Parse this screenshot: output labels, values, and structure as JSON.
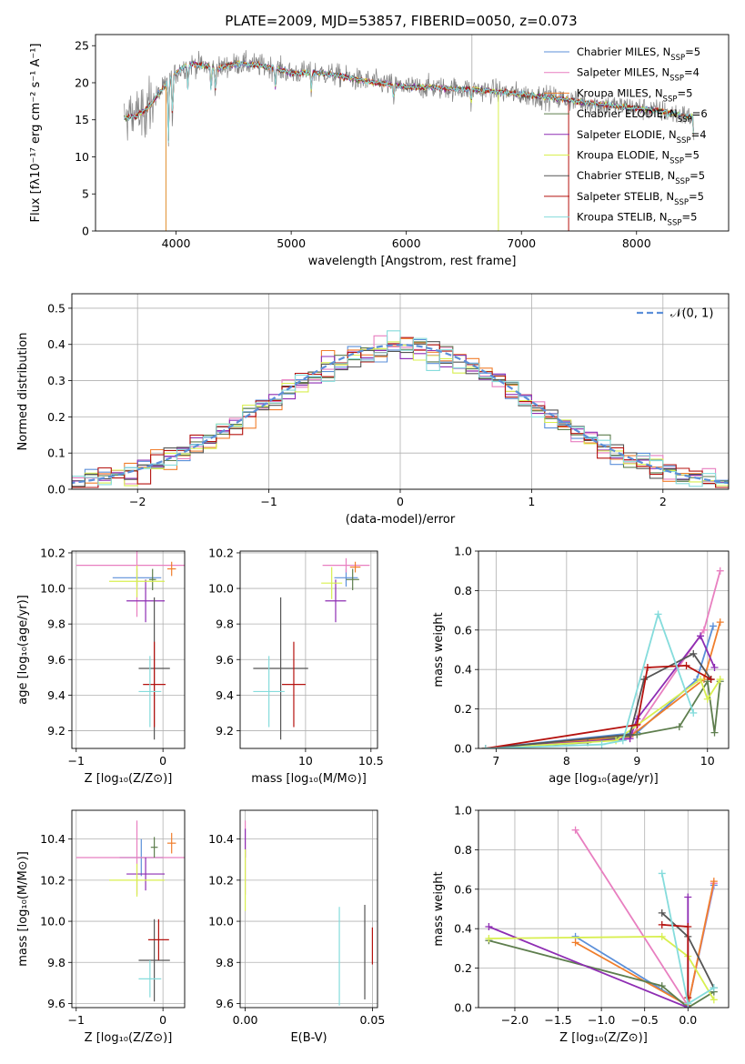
{
  "figure": {
    "title": "PLATE=2009, MJD=53857, FIBERID=0050, z=0.073"
  },
  "model_colors": {
    "Chabrier MILES": "#5b8fd9",
    "Salpeter MILES": "#e87fc0",
    "Kroupa MILES": "#f07e2c",
    "Chabrier ELODIE": "#5e7e4e",
    "Salpeter ELODIE": "#8e2db3",
    "Kroupa ELODIE": "#d8ef4f",
    "Chabrier STELIB": "#555555",
    "Salpeter STELIB": "#b5120f",
    "Kroupa STELIB": "#85dcdc"
  },
  "chart_data": [
    {
      "id": "spectrum",
      "type": "line",
      "title": "PLATE=2009, MJD=53857, FIBERID=0050, z=0.073",
      "xlabel": "wavelength [Angstrom, rest frame]",
      "ylabel": "Flux [fλ10⁻¹⁷ erg cm⁻² s⁻¹ A⁻¹]",
      "xlim": [
        3300,
        8800
      ],
      "ylim": [
        0,
        26.5
      ],
      "xticks": [
        4000,
        5000,
        6000,
        7000,
        8000
      ],
      "yticks": [
        0,
        5,
        10,
        15,
        20,
        25
      ],
      "legend_placement": "top-right",
      "legend": [
        "Chabrier MILES, N_SSP=5",
        "Salpeter MILES, N_SSP=4",
        "Kroupa MILES, N_SSP=5",
        "Chabrier ELODIE, N_SSP=6",
        "Salpeter ELODIE, N_SSP=4",
        "Kroupa ELODIE, N_SSP=5",
        "Chabrier STELIB, N_SSP=5",
        "Salpeter STELIB, N_SSP=5",
        "Kroupa STELIB, N_SSP=5"
      ],
      "continuum": {
        "x": [
          3550,
          3650,
          3750,
          3850,
          3950,
          4050,
          4150,
          4250,
          4350,
          4450,
          4550,
          4700,
          4850,
          5000,
          5200,
          5400,
          5600,
          5800,
          6000,
          6200,
          6400,
          6600,
          6800,
          7000,
          7200,
          7400,
          7600,
          7800,
          8000,
          8200,
          8400,
          8500
        ],
        "y": [
          15.2,
          15.5,
          16.5,
          18.5,
          20.5,
          22.0,
          22.5,
          22.3,
          21.8,
          22.3,
          22.6,
          22.4,
          22.0,
          21.3,
          21.4,
          21.0,
          20.3,
          19.9,
          19.4,
          19.4,
          19.2,
          19.1,
          18.8,
          18.4,
          18.1,
          17.7,
          17.2,
          16.9,
          16.6,
          16.2,
          15.6,
          15.3
        ]
      },
      "grid": false
    },
    {
      "id": "residuals",
      "type": "bar",
      "xlabel": "(data-model)/error",
      "ylabel": "Normed distribution",
      "xlim": [
        -2.5,
        2.5
      ],
      "ylim": [
        0,
        0.54
      ],
      "xticks": [
        -2,
        -1,
        0,
        1,
        2
      ],
      "yticks": [
        0.0,
        0.1,
        0.2,
        0.3,
        0.4,
        0.5
      ],
      "bin_width": 0.1,
      "legend": [
        "𝒩(0, 1)"
      ],
      "legend_placement": "top-right",
      "reference_curve": "N(0,1)",
      "grid": true
    },
    {
      "id": "age-vs-Z",
      "type": "scatter",
      "xlabel": "Z [log₁₀(Z/Z⊙)]",
      "ylabel": "age  [log₁₀(age/yr)]",
      "xlim": [
        -1.05,
        0.25
      ],
      "ylim": [
        9.1,
        10.21
      ],
      "xticks": [
        -1,
        0
      ],
      "yticks": [
        9.2,
        9.4,
        9.6,
        9.8,
        10.0,
        10.2
      ],
      "grid": true,
      "points": [
        {
          "model": "Chabrier MILES",
          "x": -0.3,
          "xerr": 0.28,
          "y": 10.06,
          "yerr": 0.05
        },
        {
          "model": "Salpeter MILES",
          "x": -0.3,
          "xerr": 0.7,
          "y": 10.13,
          "yerr": 0.29
        },
        {
          "model": "Kroupa MILES",
          "x": 0.1,
          "xerr": 0.05,
          "y": 10.11,
          "yerr": 0.04
        },
        {
          "model": "Chabrier ELODIE",
          "x": -0.12,
          "xerr": 0.04,
          "y": 10.05,
          "yerr": 0.06
        },
        {
          "model": "Salpeter ELODIE",
          "x": -0.2,
          "xerr": 0.22,
          "y": 9.93,
          "yerr": 0.12
        },
        {
          "model": "Kroupa ELODIE",
          "x": -0.3,
          "xerr": 0.32,
          "y": 10.04,
          "yerr": 0.09
        },
        {
          "model": "Chabrier STELIB",
          "x": -0.1,
          "xerr": 0.18,
          "y": 9.55,
          "yerr": 0.4
        },
        {
          "model": "Salpeter STELIB",
          "x": -0.1,
          "xerr": 0.13,
          "y": 9.46,
          "yerr": 0.24
        },
        {
          "model": "Kroupa STELIB",
          "x": -0.15,
          "xerr": 0.13,
          "y": 9.42,
          "yerr": 0.2
        }
      ]
    },
    {
      "id": "age-vs-mass",
      "type": "scatter",
      "xlabel": "mass [log₁₀(M/M⊙)]",
      "ylabel": "",
      "xlim": [
        9.5,
        10.55
      ],
      "ylim": [
        9.1,
        10.21
      ],
      "xticks": [
        10.0,
        10.5
      ],
      "xticklabels": [
        "10",
        "10.5"
      ],
      "yticks": [
        9.2,
        9.4,
        9.6,
        9.8,
        10.0,
        10.2
      ],
      "grid": true,
      "points": [
        {
          "model": "Chabrier MILES",
          "x": 10.31,
          "xerr": 0.09,
          "y": 10.06,
          "yerr": 0.05
        },
        {
          "model": "Salpeter MILES",
          "x": 10.31,
          "xerr": 0.18,
          "y": 10.13,
          "yerr": 0.04
        },
        {
          "model": "Kroupa MILES",
          "x": 10.38,
          "xerr": 0.04,
          "y": 10.12,
          "yerr": 0.03
        },
        {
          "model": "Chabrier ELODIE",
          "x": 10.36,
          "xerr": 0.05,
          "y": 10.05,
          "yerr": 0.06
        },
        {
          "model": "Salpeter ELODIE",
          "x": 10.23,
          "xerr": 0.08,
          "y": 9.93,
          "yerr": 0.12
        },
        {
          "model": "Kroupa ELODIE",
          "x": 10.2,
          "xerr": 0.08,
          "y": 10.03,
          "yerr": 0.09
        },
        {
          "model": "Chabrier STELIB",
          "x": 9.81,
          "xerr": 0.21,
          "y": 9.55,
          "yerr": 0.4
        },
        {
          "model": "Salpeter STELIB",
          "x": 9.91,
          "xerr": 0.09,
          "y": 9.46,
          "yerr": 0.24
        },
        {
          "model": "Kroupa STELIB",
          "x": 9.72,
          "xerr": 0.12,
          "y": 9.42,
          "yerr": 0.2
        }
      ]
    },
    {
      "id": "mass-weight-vs-age",
      "type": "line",
      "xlabel": "age  [log₁₀(age/yr)]",
      "ylabel": "mass weight",
      "xlim": [
        6.75,
        10.3
      ],
      "ylim": [
        0,
        1.0
      ],
      "xticks": [
        7,
        8,
        9,
        10
      ],
      "yticks": [
        0.0,
        0.2,
        0.4,
        0.6,
        0.8,
        1.0
      ],
      "grid": true,
      "series": [
        {
          "model": "Chabrier MILES",
          "x": [
            6.85,
            9.0,
            9.85,
            10.08
          ],
          "y": [
            0.0,
            0.08,
            0.35,
            0.62
          ]
        },
        {
          "model": "Salpeter MILES",
          "x": [
            6.85,
            8.9,
            9.95,
            10.18
          ],
          "y": [
            0.0,
            0.05,
            0.6,
            0.9
          ]
        },
        {
          "model": "Kroupa MILES",
          "x": [
            6.85,
            8.9,
            9.95,
            10.18
          ],
          "y": [
            0.0,
            0.06,
            0.35,
            0.64
          ]
        },
        {
          "model": "Chabrier ELODIE",
          "x": [
            6.85,
            8.3,
            9.0,
            9.6,
            10.0,
            10.1,
            10.18
          ],
          "y": [
            0.0,
            0.03,
            0.07,
            0.11,
            0.34,
            0.08,
            0.34
          ]
        },
        {
          "model": "Salpeter ELODIE",
          "x": [
            6.85,
            8.9,
            9.0,
            9.9,
            10.1
          ],
          "y": [
            0.0,
            0.05,
            0.15,
            0.57,
            0.41
          ]
        },
        {
          "model": "Kroupa ELODIE",
          "x": [
            6.85,
            8.7,
            9.9,
            10.0,
            10.18
          ],
          "y": [
            0.0,
            0.04,
            0.35,
            0.25,
            0.35
          ]
        },
        {
          "model": "Chabrier STELIB",
          "x": [
            6.85,
            8.9,
            9.1,
            9.8,
            10.05
          ],
          "y": [
            0.0,
            0.07,
            0.35,
            0.48,
            0.35
          ]
        },
        {
          "model": "Salpeter STELIB",
          "x": [
            6.85,
            9.0,
            9.15,
            9.7,
            10.05
          ],
          "y": [
            0.0,
            0.12,
            0.41,
            0.42,
            0.35
          ]
        },
        {
          "model": "Kroupa STELIB",
          "x": [
            6.85,
            8.5,
            8.8,
            9.3,
            9.8
          ],
          "y": [
            0.0,
            0.02,
            0.04,
            0.68,
            0.18
          ]
        }
      ]
    },
    {
      "id": "mass-vs-Z",
      "type": "scatter",
      "xlabel": "Z [log₁₀(Z/Z⊙)]",
      "ylabel": "mass [log₁₀(M/M⊙)]",
      "xlim": [
        -1.05,
        0.25
      ],
      "ylim": [
        9.58,
        10.54
      ],
      "xticks": [
        -1,
        0
      ],
      "yticks": [
        9.6,
        9.8,
        10.0,
        10.2,
        10.4
      ],
      "grid": true,
      "points": [
        {
          "model": "Chabrier MILES",
          "x": -0.25,
          "xerr": 0.25,
          "y": 10.31,
          "yerr": 0.09
        },
        {
          "model": "Salpeter MILES",
          "x": -0.3,
          "xerr": 0.7,
          "y": 10.31,
          "yerr": 0.18
        },
        {
          "model": "Kroupa MILES",
          "x": 0.1,
          "xerr": 0.05,
          "y": 10.38,
          "yerr": 0.05
        },
        {
          "model": "Chabrier ELODIE",
          "x": -0.1,
          "xerr": 0.04,
          "y": 10.36,
          "yerr": 0.05
        },
        {
          "model": "Salpeter ELODIE",
          "x": -0.2,
          "xerr": 0.22,
          "y": 10.23,
          "yerr": 0.08
        },
        {
          "model": "Kroupa ELODIE",
          "x": -0.3,
          "xerr": 0.32,
          "y": 10.2,
          "yerr": 0.08
        },
        {
          "model": "Chabrier STELIB",
          "x": -0.1,
          "xerr": 0.18,
          "y": 9.81,
          "yerr": 0.2
        },
        {
          "model": "Salpeter STELIB",
          "x": -0.05,
          "xerr": 0.12,
          "y": 9.91,
          "yerr": 0.1
        },
        {
          "model": "Kroupa STELIB",
          "x": -0.15,
          "xerr": 0.13,
          "y": 9.72,
          "yerr": 0.09
        }
      ]
    },
    {
      "id": "mass-vs-ebv",
      "type": "scatter",
      "xlabel": "E(B-V)",
      "ylabel": "",
      "xlim": [
        -0.002,
        0.052
      ],
      "ylim": [
        9.58,
        10.54
      ],
      "xticks": [
        0.0,
        0.05
      ],
      "xticklabels": [
        "0.00",
        "0.05"
      ],
      "yticks": [
        9.6,
        9.8,
        10.0,
        10.2,
        10.4
      ],
      "grid": true,
      "points": [
        {
          "model": "Salpeter MILES",
          "x": 0.0,
          "xerr": 0,
          "y": 10.31,
          "yerr": 0.18
        },
        {
          "model": "Salpeter ELODIE",
          "x": 0.0,
          "xerr": 0,
          "y": 10.38,
          "yerr": 0.07
        },
        {
          "model": "Kroupa ELODIE",
          "x": 0.0,
          "xerr": 0,
          "y": 10.2,
          "yerr": 0.15
        },
        {
          "model": "Kroupa STELIB",
          "x": 0.037,
          "xerr": 0,
          "y": 9.83,
          "yerr": 0.24
        },
        {
          "model": "Chabrier STELIB",
          "x": 0.047,
          "xerr": 0,
          "y": 9.85,
          "yerr": 0.23
        },
        {
          "model": "Salpeter STELIB",
          "x": 0.05,
          "xerr": 0,
          "y": 9.88,
          "yerr": 0.09
        }
      ]
    },
    {
      "id": "mass-weight-vs-Z",
      "type": "line",
      "xlabel": "Z [log₁₀(Z/Z⊙)]",
      "ylabel": "mass weight",
      "xlim": [
        -2.42,
        0.47
      ],
      "ylim": [
        0,
        1.0
      ],
      "xticks": [
        -2.0,
        -1.5,
        -1.0,
        -0.5,
        0.0
      ],
      "yticks": [
        0.0,
        0.2,
        0.4,
        0.6,
        0.8,
        1.0
      ],
      "grid": true,
      "series": [
        {
          "model": "Chabrier MILES",
          "x": [
            -1.3,
            0.0,
            0.3
          ],
          "y": [
            0.36,
            0.01,
            0.62
          ]
        },
        {
          "model": "Salpeter MILES",
          "x": [
            -1.3,
            0.0,
            0.3
          ],
          "y": [
            0.9,
            0.01,
            0.63
          ]
        },
        {
          "model": "Kroupa MILES",
          "x": [
            -1.3,
            0.0,
            0.3
          ],
          "y": [
            0.33,
            0.01,
            0.64
          ]
        },
        {
          "model": "Chabrier ELODIE",
          "x": [
            -2.3,
            -0.3,
            0.0,
            0.3
          ],
          "y": [
            0.34,
            0.11,
            0.0,
            0.08
          ]
        },
        {
          "model": "Salpeter ELODIE",
          "x": [
            -2.3,
            0.0,
            0.0
          ],
          "y": [
            0.41,
            0.0,
            0.56
          ]
        },
        {
          "model": "Kroupa ELODIE",
          "x": [
            -2.3,
            -0.3,
            0.0,
            0.3
          ],
          "y": [
            0.35,
            0.36,
            0.26,
            0.04
          ]
        },
        {
          "model": "Chabrier STELIB",
          "x": [
            -0.3,
            0.0,
            0.3
          ],
          "y": [
            0.48,
            0.36,
            0.1
          ]
        },
        {
          "model": "Salpeter STELIB",
          "x": [
            -0.3,
            0.0,
            0.0
          ],
          "y": [
            0.42,
            0.41,
            0.05
          ]
        },
        {
          "model": "Kroupa STELIB",
          "x": [
            -0.3,
            0.0,
            0.3
          ],
          "y": [
            0.68,
            0.02,
            0.1
          ]
        }
      ]
    }
  ]
}
